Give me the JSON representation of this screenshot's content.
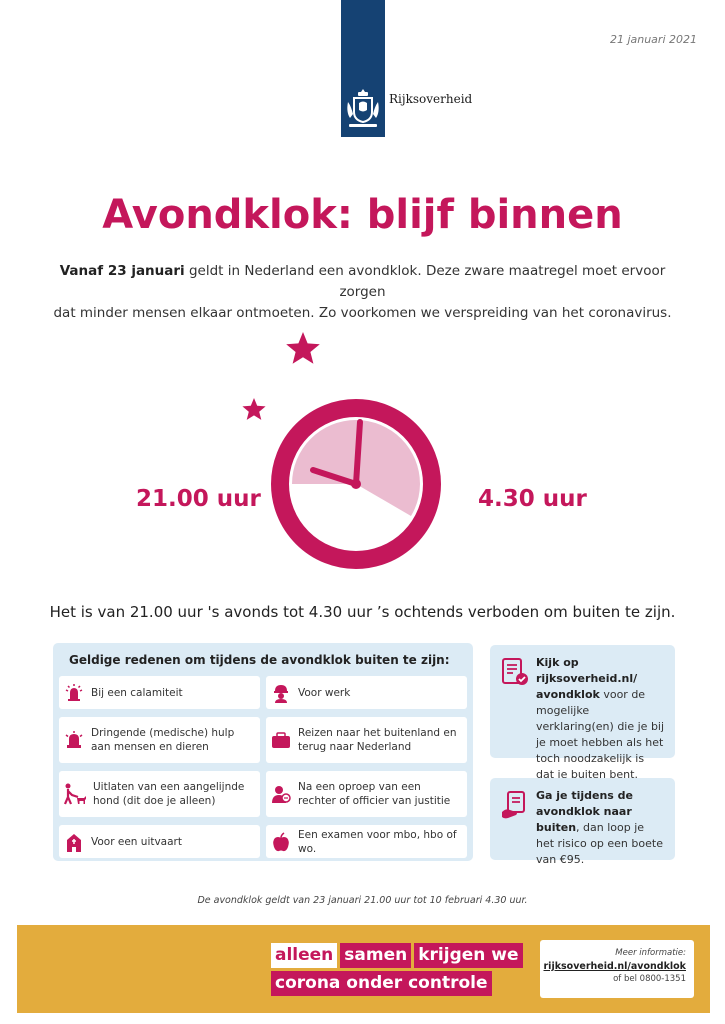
{
  "header": {
    "date": "21 januari 2021",
    "logo_text": "Rijksoverheid"
  },
  "title": "Avondklok: blijf binnen",
  "intro": {
    "bold": "Vanaf 23 januari",
    "line1_rest": " geldt in Nederland een avondklok. Deze zware maatregel moet ervoor zorgen",
    "line2": "dat minder mensen elkaar ontmoeten. Zo voorkomen we verspreiding van het coronavirus."
  },
  "clock": {
    "start_label": "21.00 uur",
    "end_label": "4.30 uur"
  },
  "rule_text": "Het is van 21.00 uur 's avonds tot 4.30 uur ’s ochtends verboden om buiten te zijn.",
  "reasons": {
    "title": "Geldige redenen om tijdens de avondklok buiten te zijn:",
    "items": [
      {
        "label": "Bij een calamiteit",
        "icon": "alarm-icon"
      },
      {
        "label": "Voor werk",
        "icon": "worker-icon"
      },
      {
        "label": "Dringende (medische) hulp aan mensen en dieren",
        "icon": "siren-icon"
      },
      {
        "label": "Reizen naar het buitenland en terug naar Nederland",
        "icon": "suitcase-icon"
      },
      {
        "label": "Uitlaten van een aangelijnde hond (dit doe je alleen)",
        "icon": "dog-walker-icon"
      },
      {
        "label": "Na een oproep van een rechter of officier van justitie",
        "icon": "judge-icon"
      },
      {
        "label": "Voor een uitvaart",
        "icon": "chapel-icon"
      },
      {
        "label": "Een examen voor mbo, hbo of wo.",
        "icon": "apple-icon"
      }
    ]
  },
  "info": {
    "box1_bold": "Kijk op rijksoverheid.nl/ avondklok",
    "box1_rest": " voor de mogelijke verklaring(en) die je bij je moet hebben als het toch noodzakelijk is dat je buiten bent.",
    "box2_bold": "Ga je tijdens de avondklok naar buiten",
    "box2_rest": ", dan loop je het risico op een boete van €95."
  },
  "footnote": "De avondklok geldt van 23 januari 21.00 uur tot 10 februari 4.30 uur.",
  "banner": {
    "slogan_1": "alleen",
    "slogan_2": "samen",
    "slogan_3": "krijgen we",
    "slogan_4": "corona onder controle",
    "more_label": "Meer informatie:",
    "more_url": "rijksoverheid.nl/avondklok",
    "more_phone": "of bel 0800-1351"
  },
  "colors": {
    "accent": "#c4175b",
    "light_pink": "#ebbcd0",
    "navy": "#154273",
    "panel_blue": "#dcebf5",
    "banner_yellow": "#e3ac3d"
  }
}
